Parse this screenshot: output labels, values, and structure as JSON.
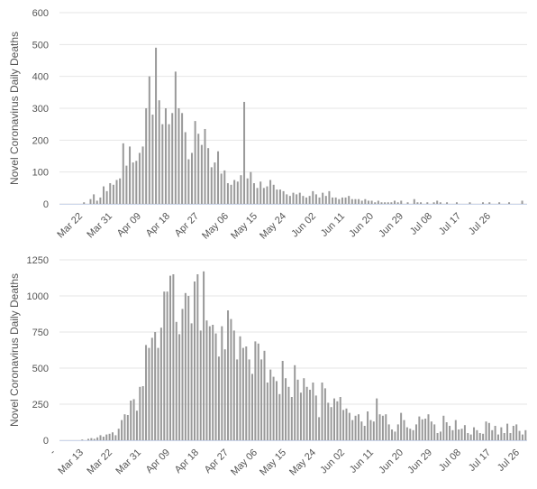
{
  "chart_data": [
    {
      "type": "bar",
      "ylabel": "Novel Coronavirus Daily Deaths",
      "ylim": [
        0,
        600
      ],
      "yticks": [
        0,
        100,
        200,
        300,
        400,
        500,
        600
      ],
      "x_start": "Mar 13",
      "x_tick_labels": [
        "Mar 22",
        "Mar 31",
        "Apr 09",
        "Apr 18",
        "Apr 27",
        "May 06",
        "May 15",
        "May 24",
        "Jun 02",
        "Jun 11",
        "Jun 20",
        "Jun 29",
        "Jul 08",
        "Jul 17",
        "Jul 26"
      ],
      "grid": true,
      "bar_color": "#999999",
      "values": [
        0,
        0,
        0,
        0,
        0,
        0,
        0,
        5,
        0,
        15,
        30,
        10,
        20,
        55,
        40,
        65,
        60,
        75,
        80,
        190,
        120,
        180,
        130,
        135,
        160,
        180,
        300,
        400,
        280,
        490,
        325,
        250,
        300,
        250,
        285,
        415,
        300,
        285,
        225,
        140,
        160,
        260,
        220,
        185,
        235,
        175,
        115,
        130,
        165,
        95,
        105,
        65,
        60,
        75,
        70,
        90,
        320,
        80,
        100,
        65,
        50,
        70,
        50,
        55,
        75,
        60,
        45,
        45,
        40,
        30,
        25,
        35,
        30,
        35,
        25,
        20,
        25,
        40,
        30,
        20,
        35,
        25,
        40,
        20,
        20,
        15,
        20,
        20,
        25,
        15,
        15,
        15,
        10,
        15,
        10,
        10,
        5,
        10,
        5,
        5,
        5,
        5,
        10,
        5,
        10,
        0,
        5,
        0,
        15,
        5,
        5,
        0,
        5,
        0,
        5,
        10,
        5,
        0,
        5,
        0,
        0,
        5,
        0,
        0,
        0,
        5,
        0,
        0,
        0,
        5,
        0,
        5,
        0,
        0,
        5,
        0,
        0,
        5,
        0,
        0,
        0,
        10,
        0
      ]
    },
    {
      "type": "bar",
      "ylabel": "Novel Coronavirus Daily Deaths",
      "ylim": [
        0,
        1250
      ],
      "yticks": [
        0,
        250,
        500,
        750,
        1000,
        1250
      ],
      "x_start": "Mar 13",
      "x_tick_labels": [
        "-",
        "Mar 13",
        "Mar 22",
        "Mar 31",
        "Apr 09",
        "Apr 18",
        "Apr 27",
        "May 06",
        "May 15",
        "May 24",
        "Jun 02",
        "Jun 11",
        "Jun 20",
        "Jun 29",
        "Jul 08",
        "Jul 17",
        "Jul 26"
      ],
      "grid": true,
      "bar_color": "#999999",
      "values": [
        0,
        0,
        0,
        0,
        0,
        0,
        0,
        5,
        0,
        10,
        15,
        10,
        20,
        35,
        25,
        40,
        45,
        55,
        35,
        80,
        140,
        180,
        175,
        275,
        285,
        205,
        370,
        375,
        660,
        640,
        710,
        750,
        640,
        780,
        1030,
        1030,
        1140,
        1150,
        820,
        735,
        910,
        1020,
        1000,
        810,
        1100,
        1150,
        760,
        1170,
        830,
        790,
        800,
        740,
        580,
        790,
        630,
        900,
        840,
        760,
        560,
        720,
        640,
        650,
        560,
        460,
        685,
        670,
        560,
        620,
        400,
        490,
        440,
        410,
        320,
        550,
        430,
        370,
        300,
        520,
        420,
        330,
        430,
        370,
        350,
        400,
        310,
        160,
        400,
        360,
        260,
        230,
        290,
        270,
        300,
        210,
        220,
        190,
        140,
        170,
        180,
        130,
        100,
        200,
        140,
        130,
        290,
        180,
        170,
        180,
        110,
        75,
        60,
        110,
        190,
        140,
        90,
        80,
        70,
        110,
        165,
        145,
        150,
        180,
        130,
        110,
        50,
        60,
        170,
        125,
        100,
        70,
        140,
        75,
        80,
        105,
        50,
        40,
        90,
        70,
        50,
        45,
        130,
        120,
        70,
        100,
        40,
        90,
        50,
        115,
        50,
        100,
        110,
        65,
        40,
        70
      ]
    }
  ]
}
